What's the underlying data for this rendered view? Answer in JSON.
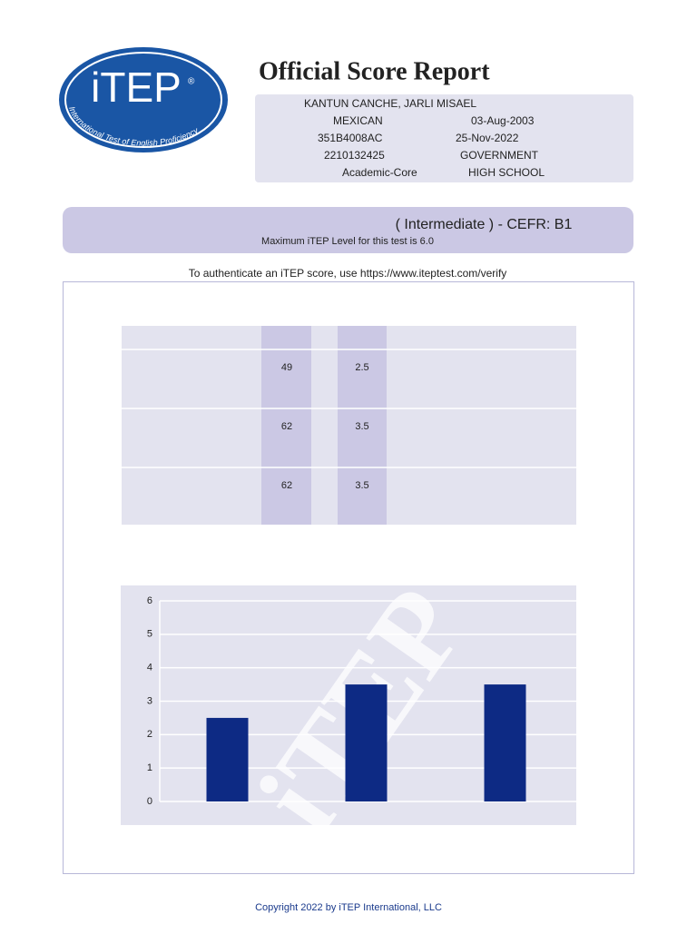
{
  "logo": {
    "wordmark": "iTEP",
    "registered": "®",
    "tagline": "International Test of English Proficiency"
  },
  "header": {
    "title": "Official Score Report",
    "name": "KANTUN CANCHE, JARLI MISAEL",
    "nationality": "MEXICAN",
    "birth_date": "03-Aug-2003",
    "id": "351B4008AC",
    "test_date": "25-Nov-2022",
    "code": "2210132425",
    "sponsor": "GOVERNMENT",
    "test_type": "Academic-Core",
    "level": "HIGH SCHOOL"
  },
  "banner": {
    "result": "( Intermediate ) - CEFR: B1",
    "note": "Maximum iTEP Level for this test is 6.0"
  },
  "verify": "To authenticate an iTEP score, use https://www.iteptest.com/verify",
  "table": {
    "rows": [
      [
        49,
        2.5
      ],
      [
        62,
        3.5
      ],
      [
        62,
        3.5
      ]
    ]
  },
  "chart_data": {
    "type": "bar",
    "categories": [
      null,
      null,
      null
    ],
    "values": [
      2.5,
      3.5,
      3.5
    ],
    "color": "#0d2a84",
    "ylim": [
      0,
      6
    ],
    "yticks": [
      0,
      1,
      2,
      3,
      4,
      5,
      6
    ],
    "grid": true,
    "watermark": "iTEP"
  },
  "footer": "Copyright 2022 by iTEP International, LLC"
}
